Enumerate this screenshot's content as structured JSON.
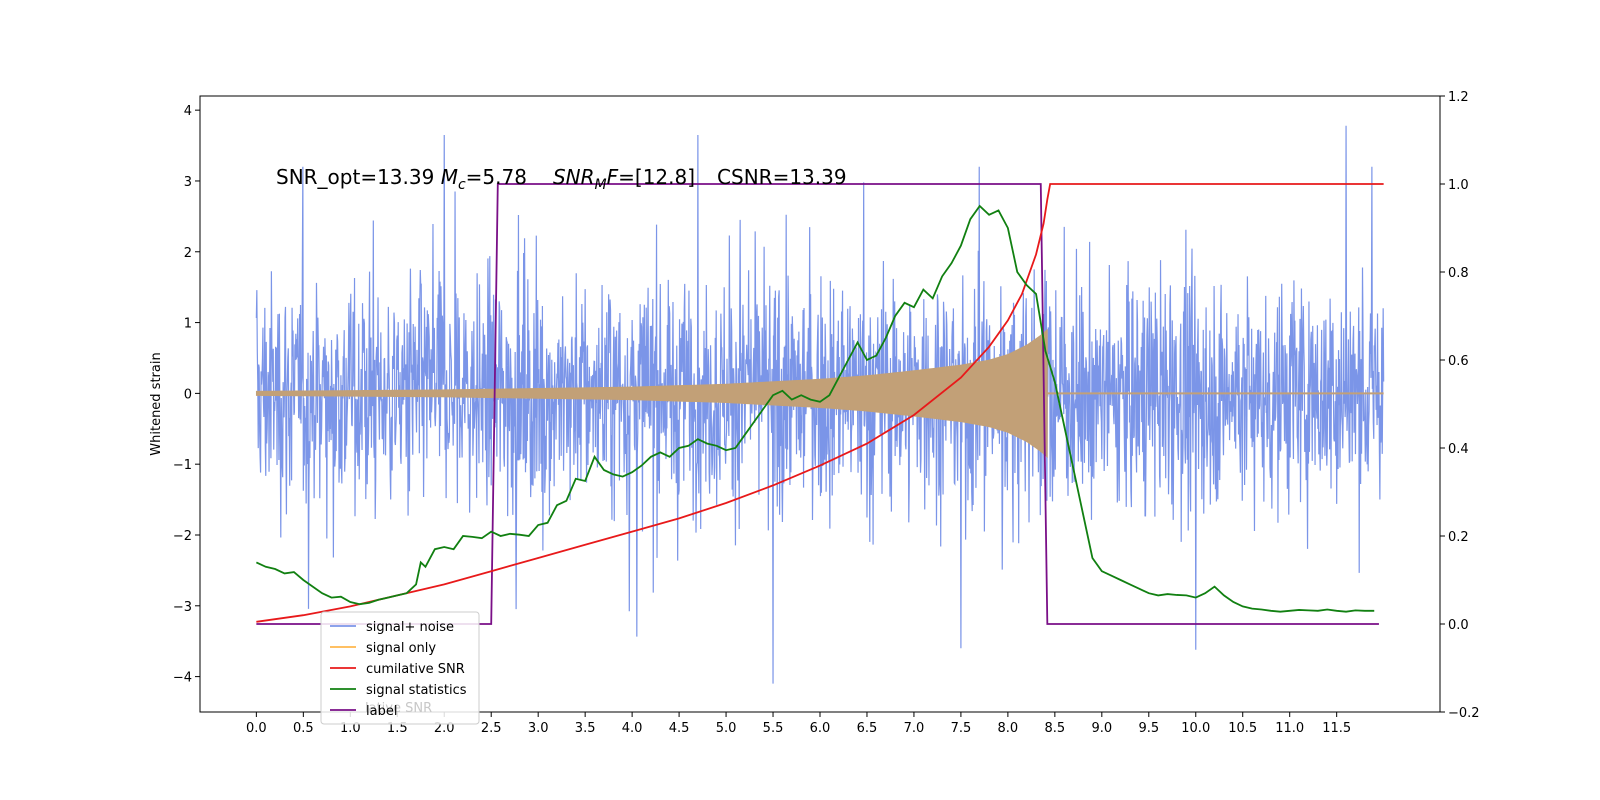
{
  "chart_data": {
    "type": "line",
    "title": "",
    "xlabel": "",
    "ylabel": "Whitened strain",
    "xlim": [
      -0.6,
      12.6
    ],
    "ylim": [
      -4.5,
      4.2
    ],
    "y2lim": [
      -0.2,
      1.2
    ],
    "xticks": [
      0.0,
      0.5,
      1.0,
      1.5,
      2.0,
      2.5,
      3.0,
      3.5,
      4.0,
      4.5,
      5.0,
      5.5,
      6.0,
      6.5,
      7.0,
      7.5,
      8.0,
      8.5,
      9.0,
      9.5,
      10.0,
      10.5,
      11.0,
      11.5
    ],
    "xtick_labels": [
      "0.0",
      "0.5",
      "1.0",
      "1.5",
      "2.0",
      "2.5",
      "3.0",
      "3.5",
      "4.0",
      "4.5",
      "5.0",
      "5.5",
      "6.0",
      "6.5",
      "7.0",
      "7.5",
      "8.0",
      "8.5",
      "9.0",
      "9.5",
      "10.0",
      "10.5",
      "11.0",
      "11.5"
    ],
    "yticks": [
      -4,
      -3,
      -2,
      -1,
      0,
      1,
      2,
      3,
      4
    ],
    "ytick_labels": [
      "−4",
      "−3",
      "−2",
      "−1",
      "0",
      "1",
      "2",
      "3",
      "4"
    ],
    "y2ticks": [
      -0.2,
      0.0,
      0.2,
      0.4,
      0.6,
      0.8,
      1.0,
      1.2
    ],
    "y2tick_labels": [
      "−0.2",
      "0.0",
      "0.2",
      "0.4",
      "0.6",
      "0.8",
      "1.0",
      "1.2"
    ],
    "annotation": {
      "prefix": "SNR_opt=13.39 ",
      "mc_symbol": "M",
      "mc_sub": "c",
      "mc_value": "=5.78",
      "snr_symbol": "SNR",
      "snr_sub": "M",
      "snr_tail": "F",
      "snr_value": "=[12.8]",
      "csnr": "CSNR=13.39"
    },
    "legend": {
      "placement": "lower-left",
      "entries": [
        "signal+ noise",
        "signal only",
        "cumilative SNR",
        "signal statistics",
        "label"
      ],
      "overlapped_text": "lative SNR"
    },
    "series": [
      {
        "name": "signal+ noise",
        "axis": "left",
        "color": "#7b95e8",
        "kind": "noise",
        "x_range": [
          0.0,
          12.0
        ],
        "typical_range": [
          -1.6,
          1.6
        ],
        "extreme_range": [
          -4.1,
          3.8
        ],
        "notable_peaks": [
          [
            2.0,
            3.65
          ],
          [
            4.7,
            3.65
          ],
          [
            11.6,
            3.78
          ],
          [
            5.5,
            -4.1
          ],
          [
            10.0,
            -3.62
          ],
          [
            7.5,
            -3.6
          ]
        ]
      },
      {
        "name": "signal only",
        "axis": "left",
        "color": "#c2a077",
        "kind": "chirp-envelope",
        "x_range": [
          0.0,
          8.42
        ],
        "envelope": [
          [
            0.0,
            0.03
          ],
          [
            1.0,
            0.04
          ],
          [
            2.0,
            0.05
          ],
          [
            3.0,
            0.07
          ],
          [
            4.0,
            0.09
          ],
          [
            5.0,
            0.13
          ],
          [
            6.0,
            0.2
          ],
          [
            6.5,
            0.25
          ],
          [
            7.0,
            0.32
          ],
          [
            7.5,
            0.4
          ],
          [
            7.8,
            0.47
          ],
          [
            8.0,
            0.55
          ],
          [
            8.2,
            0.68
          ],
          [
            8.35,
            0.82
          ],
          [
            8.42,
            0.9
          ]
        ],
        "post_value": 0.02
      },
      {
        "name": "cumilative SNR",
        "axis": "right",
        "color": "#e8191a",
        "x": [
          0.0,
          0.5,
          1.0,
          1.5,
          2.0,
          2.5,
          3.0,
          3.5,
          4.0,
          4.5,
          5.0,
          5.5,
          6.0,
          6.5,
          7.0,
          7.5,
          7.8,
          8.0,
          8.15,
          8.3,
          8.38,
          8.42,
          8.45,
          12.0
        ],
        "values": [
          0.005,
          0.02,
          0.04,
          0.065,
          0.09,
          0.12,
          0.15,
          0.18,
          0.21,
          0.24,
          0.275,
          0.315,
          0.36,
          0.41,
          0.475,
          0.56,
          0.63,
          0.69,
          0.75,
          0.84,
          0.91,
          0.965,
          1.0,
          1.0
        ]
      },
      {
        "name": "signal statistics",
        "axis": "right",
        "color": "#118011",
        "x": [
          0.0,
          0.1,
          0.2,
          0.3,
          0.4,
          0.5,
          0.6,
          0.7,
          0.8,
          0.9,
          1.0,
          1.1,
          1.2,
          1.3,
          1.4,
          1.5,
          1.6,
          1.7,
          1.75,
          1.8,
          1.9,
          2.0,
          2.1,
          2.2,
          2.3,
          2.4,
          2.5,
          2.6,
          2.7,
          2.8,
          2.9,
          3.0,
          3.1,
          3.2,
          3.3,
          3.4,
          3.5,
          3.6,
          3.7,
          3.8,
          3.9,
          4.0,
          4.1,
          4.2,
          4.3,
          4.4,
          4.5,
          4.6,
          4.7,
          4.8,
          4.9,
          5.0,
          5.1,
          5.2,
          5.3,
          5.4,
          5.5,
          5.6,
          5.7,
          5.8,
          5.9,
          6.0,
          6.1,
          6.2,
          6.3,
          6.4,
          6.5,
          6.6,
          6.7,
          6.8,
          6.9,
          7.0,
          7.1,
          7.2,
          7.3,
          7.4,
          7.5,
          7.6,
          7.7,
          7.8,
          7.9,
          8.0,
          8.1,
          8.2,
          8.3,
          8.4,
          8.5,
          8.6,
          8.7,
          8.8,
          8.9,
          9.0,
          9.1,
          9.2,
          9.3,
          9.4,
          9.5,
          9.6,
          9.7,
          9.8,
          9.9,
          10.0,
          10.1,
          10.2,
          10.3,
          10.4,
          10.5,
          10.6,
          10.7,
          10.8,
          10.9,
          11.0,
          11.1,
          11.2,
          11.3,
          11.4,
          11.5,
          11.6,
          11.7,
          11.8,
          11.9
        ],
        "values": [
          0.14,
          0.13,
          0.125,
          0.115,
          0.118,
          0.1,
          0.085,
          0.07,
          0.06,
          0.062,
          0.05,
          0.045,
          0.048,
          0.055,
          0.06,
          0.065,
          0.07,
          0.09,
          0.14,
          0.13,
          0.17,
          0.175,
          0.17,
          0.2,
          0.198,
          0.195,
          0.21,
          0.2,
          0.205,
          0.203,
          0.2,
          0.225,
          0.23,
          0.27,
          0.28,
          0.33,
          0.325,
          0.38,
          0.35,
          0.34,
          0.335,
          0.345,
          0.36,
          0.38,
          0.39,
          0.38,
          0.4,
          0.405,
          0.42,
          0.41,
          0.405,
          0.395,
          0.4,
          0.43,
          0.46,
          0.49,
          0.52,
          0.53,
          0.51,
          0.52,
          0.51,
          0.505,
          0.52,
          0.56,
          0.6,
          0.64,
          0.6,
          0.61,
          0.65,
          0.7,
          0.73,
          0.72,
          0.76,
          0.74,
          0.79,
          0.82,
          0.86,
          0.92,
          0.95,
          0.93,
          0.94,
          0.9,
          0.8,
          0.77,
          0.75,
          0.62,
          0.55,
          0.45,
          0.35,
          0.25,
          0.15,
          0.12,
          0.11,
          0.1,
          0.09,
          0.08,
          0.07,
          0.065,
          0.068,
          0.066,
          0.065,
          0.06,
          0.07,
          0.085,
          0.065,
          0.05,
          0.04,
          0.035,
          0.033,
          0.03,
          0.028,
          0.03,
          0.032,
          0.031,
          0.03,
          0.033,
          0.03,
          0.028,
          0.031,
          0.03,
          0.03
        ]
      },
      {
        "name": "label",
        "axis": "right",
        "color": "#7a0f87",
        "x": [
          0.0,
          2.5,
          2.57,
          8.35,
          8.42,
          11.95
        ],
        "values": [
          0.0,
          0.0,
          1.0,
          1.0,
          0.0,
          0.0
        ]
      }
    ]
  }
}
